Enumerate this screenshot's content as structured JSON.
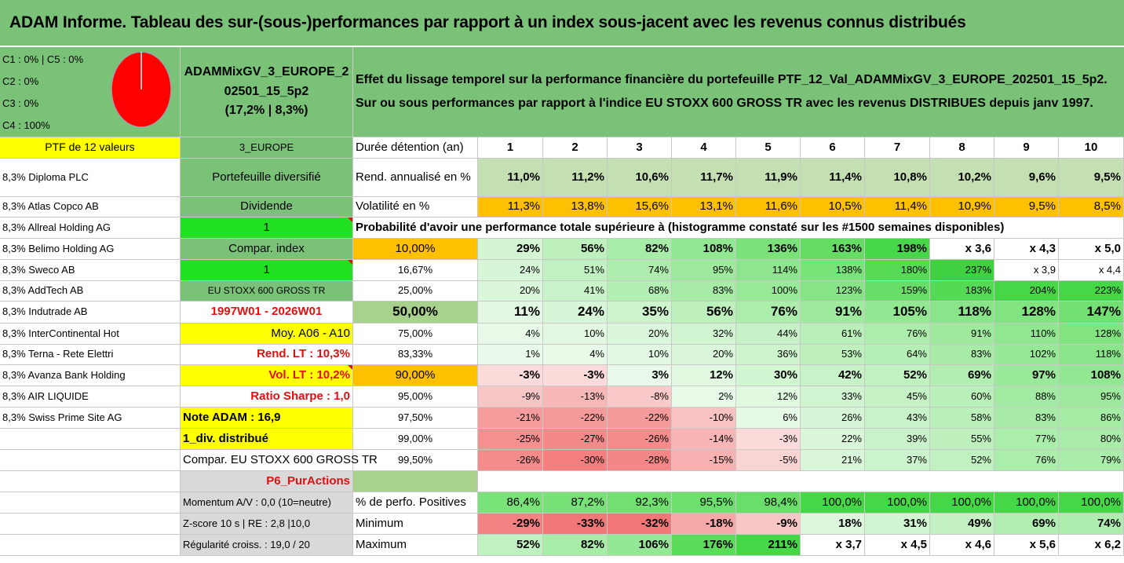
{
  "title": "ADAM Informe. Tableau des sur-(sous-)performances par rapport à un index sous-jacent avec les revenus connus distribués",
  "legend": [
    "C1 : 0% | C5 : 0%",
    "C2 : 0%",
    "C3 : 0%",
    "C4 : 100%"
  ],
  "pie_chart": {
    "type": "pie",
    "slices": [
      {
        "label": "C4",
        "value": 100,
        "color": "#ff0000"
      }
    ]
  },
  "portfolio_name": [
    "ADAMMixGV_3_EUROPE_2",
    "02501_15_5p2",
    "(17,2% | 8,3%)"
  ],
  "description": [
    "Effet du lissage temporel sur la performance financière du portefeuille PTF_12_Val_ADAMMixGV_3_EUROPE_202501_15_5p2.",
    "Sur ou sous performances par rapport à l'indice EU STOXX 600 GROSS TR avec les revenus DISTRIBUES depuis janv 1997."
  ],
  "ptf_label": "PTF de 12 valeurs",
  "holdings": [
    "8,3% Diploma PLC",
    "8,3% Atlas Copco AB",
    "8,3% Allreal Holding AG",
    "8,3% Belimo Holding AG",
    "8,3% Sweco AB",
    "8,3% AddTech AB",
    "8,3% Indutrade AB",
    "8,3% InterContinental Hot",
    "8,3% Terna - Rete Elettri",
    "8,3% Avanza Bank Holding",
    "8,3% AIR LIQUIDE",
    "8,3% Swiss Prime Site AG"
  ],
  "info_col": {
    "region": "3_EUROPE",
    "diversification": "Portefeuille diversifié",
    "dividend_label": "Dividende",
    "dividend_value": "1",
    "compar_label": "Compar. index",
    "compar_value": "1",
    "index_name": "EU STOXX 600 GROSS TR",
    "period": "1997W01 - 2026W01",
    "avg": "Moy. A06 - A10",
    "rend_lt": "Rend. LT : 10,3%",
    "vol_lt": "Vol. LT : 10,2%",
    "sharpe": "Ratio Sharpe : 1,0",
    "note": "Note ADAM : 16,9",
    "div": "1_div. distribué",
    "compar_full": "Compar. EU STOXX 600 GROSS TR",
    "actions": "P6_PurActions",
    "momentum": "Momentum A/V : 0,0 (10=neutre)",
    "zscore": "Z-score 10 s | RE : 2,8 |10,0",
    "regularite": "Régularité croiss. : 19,0 / 20"
  },
  "table": {
    "duree_label": "Durée détention (an)",
    "years": [
      "1",
      "2",
      "3",
      "4",
      "5",
      "6",
      "7",
      "8",
      "9",
      "10"
    ],
    "rend_label": "Rend. annualisé en %",
    "rend": [
      "11,0%",
      "11,2%",
      "10,6%",
      "11,7%",
      "11,9%",
      "11,4%",
      "10,8%",
      "10,2%",
      "9,6%",
      "9,5%"
    ],
    "vol_label": "Volatilité en %",
    "vol": [
      "11,3%",
      "13,8%",
      "15,6%",
      "13,1%",
      "11,6%",
      "10,5%",
      "11,4%",
      "10,9%",
      "9,5%",
      "8,5%"
    ],
    "prob_title": "Probabilité d'avoir une performance totale supérieure à (histogramme constaté sur les #1500 semaines disponibles)",
    "prob_rows": [
      {
        "p": "10,00%",
        "v": [
          "29%",
          "56%",
          "82%",
          "108%",
          "136%",
          "163%",
          "198%",
          "x 3,6",
          "x 4,3",
          "x 5,0"
        ]
      },
      {
        "p": "16,67%",
        "v": [
          "24%",
          "51%",
          "74%",
          "95%",
          "114%",
          "138%",
          "180%",
          "237%",
          "x 3,9",
          "x 4,4"
        ]
      },
      {
        "p": "25,00%",
        "v": [
          "20%",
          "41%",
          "68%",
          "83%",
          "100%",
          "123%",
          "159%",
          "183%",
          "204%",
          "223%"
        ]
      },
      {
        "p": "50,00%",
        "v": [
          "11%",
          "24%",
          "35%",
          "56%",
          "76%",
          "91%",
          "105%",
          "118%",
          "128%",
          "147%"
        ]
      },
      {
        "p": "75,00%",
        "v": [
          "4%",
          "10%",
          "20%",
          "32%",
          "44%",
          "61%",
          "76%",
          "91%",
          "110%",
          "128%"
        ]
      },
      {
        "p": "83,33%",
        "v": [
          "1%",
          "4%",
          "10%",
          "20%",
          "36%",
          "53%",
          "64%",
          "83%",
          "102%",
          "118%"
        ]
      },
      {
        "p": "90,00%",
        "v": [
          "-3%",
          "-3%",
          "3%",
          "12%",
          "30%",
          "42%",
          "52%",
          "69%",
          "97%",
          "108%"
        ]
      },
      {
        "p": "95,00%",
        "v": [
          "-9%",
          "-13%",
          "-8%",
          "2%",
          "12%",
          "33%",
          "45%",
          "60%",
          "88%",
          "95%"
        ]
      },
      {
        "p": "97,50%",
        "v": [
          "-21%",
          "-22%",
          "-22%",
          "-10%",
          "6%",
          "26%",
          "43%",
          "58%",
          "83%",
          "86%"
        ]
      },
      {
        "p": "99,00%",
        "v": [
          "-25%",
          "-27%",
          "-26%",
          "-14%",
          "-3%",
          "22%",
          "39%",
          "55%",
          "77%",
          "80%"
        ]
      },
      {
        "p": "99,50%",
        "v": [
          "-26%",
          "-30%",
          "-28%",
          "-15%",
          "-5%",
          "21%",
          "37%",
          "52%",
          "76%",
          "79%"
        ]
      }
    ],
    "pos_label": "% de perfo. Positives",
    "pos": [
      "86,4%",
      "87,2%",
      "92,3%",
      "95,5%",
      "98,4%",
      "100,0%",
      "100,0%",
      "100,0%",
      "100,0%",
      "100,0%"
    ],
    "min_label": "Minimum",
    "min": [
      "-29%",
      "-33%",
      "-32%",
      "-18%",
      "-9%",
      "18%",
      "31%",
      "49%",
      "69%",
      "74%"
    ],
    "max_label": "Maximum",
    "max": [
      "52%",
      "82%",
      "106%",
      "176%",
      "211%",
      "x 3,7",
      "x 4,5",
      "x 4,6",
      "x 5,6",
      "x 6,2"
    ]
  },
  "colors": {
    "green_header": "#79c278",
    "yellow": "#ffff00",
    "bright_green": "#22e022",
    "orange": "#ffc000",
    "red_text": "#e01010",
    "rend_bg": "#c4dfb2",
    "sage": "#a9d18e",
    "light_gray": "#d9d9d9"
  }
}
